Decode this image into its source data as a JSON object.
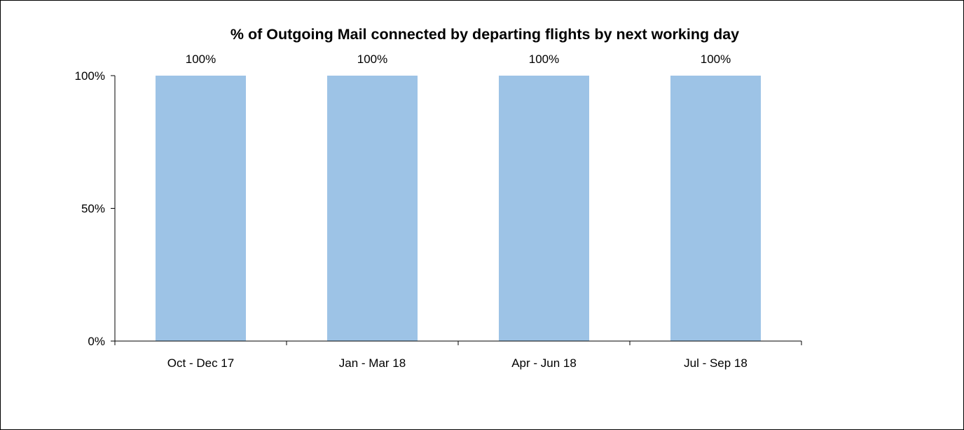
{
  "chart_data": {
    "type": "bar",
    "title": "% of Outgoing Mail connected by departing flights by next working day",
    "categories": [
      "Oct - Dec 17",
      "Jan - Mar 18",
      "Apr - Jun 18",
      "Jul - Sep 18"
    ],
    "values": [
      100,
      100,
      100,
      100
    ],
    "value_labels": [
      "100%",
      "100%",
      "100%",
      "100%"
    ],
    "ylim": [
      0,
      100
    ],
    "yticks": [
      0,
      50,
      100
    ],
    "ytick_labels": [
      "0%",
      "50%",
      "100%"
    ],
    "xlabel": "",
    "ylabel": "",
    "grid": false,
    "legend": "none",
    "colors": {
      "bar": "#9DC3E6",
      "axis": "#000000",
      "text": "#000000"
    }
  }
}
